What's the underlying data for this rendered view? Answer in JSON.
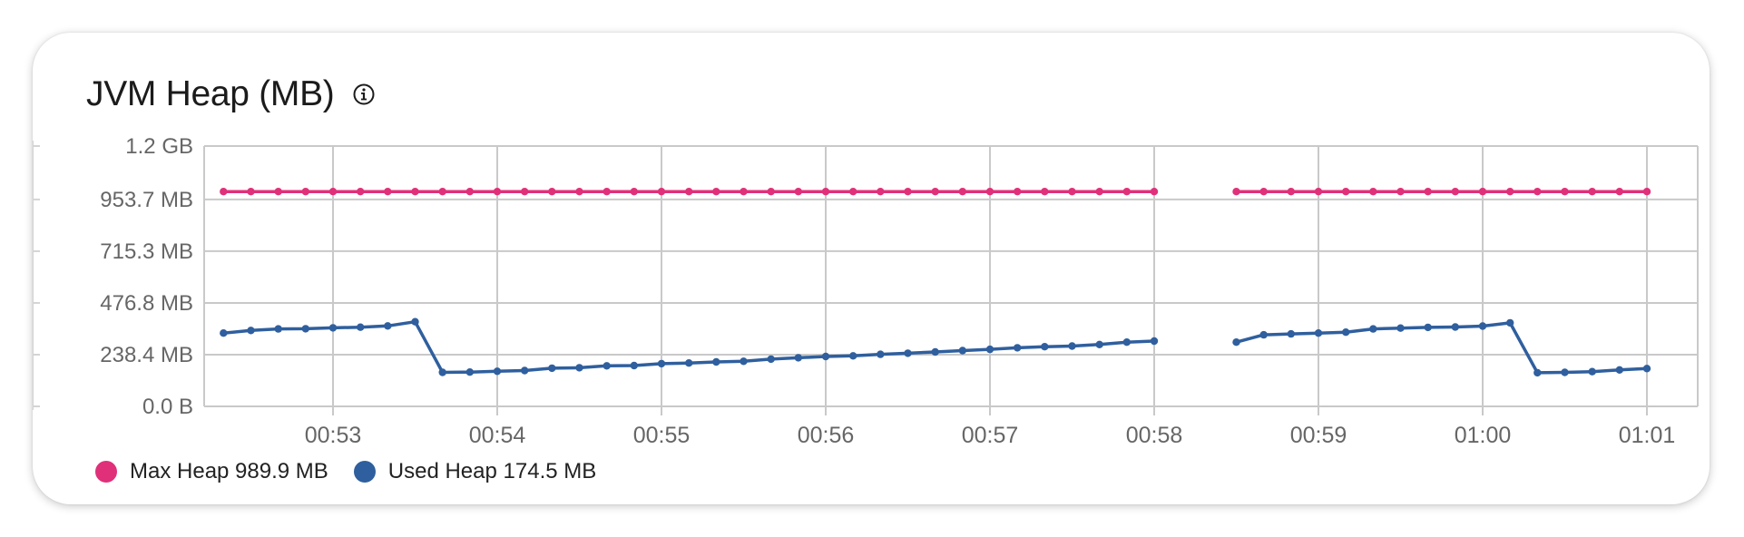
{
  "panel": {
    "title": "JVM Heap (MB)",
    "info_icon": "info-icon"
  },
  "legend": [
    {
      "label": "Max Heap 989.9 MB",
      "color": "#e0307a"
    },
    {
      "label": "Used Heap 174.5 MB",
      "color": "#2f5f9e"
    }
  ],
  "chart_data": {
    "type": "line",
    "title": "JVM Heap (MB)",
    "xlabel": "",
    "ylabel": "",
    "ylim": [
      0,
      1.2
    ],
    "y_ticks": [
      0,
      0.2384,
      0.4768,
      0.7153,
      0.9537,
      1.2
    ],
    "y_tick_labels": [
      "0.0 B",
      "238.4 MB",
      "476.8 MB",
      "715.3 MB",
      "953.7 MB",
      "1.2 GB"
    ],
    "x_ticks": [
      "00:53",
      "00:54",
      "00:55",
      "00:56",
      "00:57",
      "00:58",
      "00:59",
      "01:00",
      "01:01"
    ],
    "x_unit": "minutes after 00:53",
    "grid": true,
    "legend_position": "bottom-left",
    "series": [
      {
        "name": "Max Heap",
        "color": "#e0307a",
        "segments": [
          {
            "x": [
              -0.667,
              -0.5,
              -0.333,
              -0.167,
              0,
              0.167,
              0.333,
              0.5,
              0.667,
              0.833,
              1,
              1.167,
              1.333,
              1.5,
              1.667,
              1.833,
              2,
              2.167,
              2.333,
              2.5,
              2.667,
              2.833,
              3,
              3.167,
              3.333,
              3.5,
              3.667,
              3.833,
              4,
              4.167,
              4.333,
              4.5,
              4.667,
              4.833,
              5
            ],
            "y": [
              0.9899,
              0.9899,
              0.9899,
              0.9899,
              0.9899,
              0.9899,
              0.9899,
              0.9899,
              0.9899,
              0.9899,
              0.9899,
              0.9899,
              0.9899,
              0.9899,
              0.9899,
              0.9899,
              0.9899,
              0.9899,
              0.9899,
              0.9899,
              0.9899,
              0.9899,
              0.9899,
              0.9899,
              0.9899,
              0.9899,
              0.9899,
              0.9899,
              0.9899,
              0.9899,
              0.9899,
              0.9899,
              0.9899,
              0.9899,
              0.9899
            ]
          },
          {
            "x": [
              5.5,
              5.667,
              5.833,
              6,
              6.167,
              6.333,
              6.5,
              6.667,
              6.833,
              7,
              7.167,
              7.333,
              7.5,
              7.667,
              7.833,
              8
            ],
            "y": [
              0.9899,
              0.9899,
              0.9899,
              0.9899,
              0.9899,
              0.9899,
              0.9899,
              0.9899,
              0.9899,
              0.9899,
              0.9899,
              0.9899,
              0.9899,
              0.9899,
              0.9899,
              0.9899
            ]
          }
        ]
      },
      {
        "name": "Used Heap",
        "color": "#2f5f9e",
        "segments": [
          {
            "x": [
              -0.667,
              -0.5,
              -0.333,
              -0.167,
              0,
              0.167,
              0.333,
              0.5,
              0.667,
              0.833,
              1,
              1.167,
              1.333,
              1.5,
              1.667,
              1.833,
              2,
              2.167,
              2.333,
              2.5,
              2.667,
              2.833,
              3,
              3.167,
              3.333,
              3.5,
              3.667,
              3.833,
              4,
              4.167,
              4.333,
              4.5,
              4.667,
              4.833,
              5
            ],
            "y": [
              0.338,
              0.35,
              0.357,
              0.358,
              0.362,
              0.365,
              0.371,
              0.39,
              0.157,
              0.158,
              0.162,
              0.165,
              0.176,
              0.178,
              0.187,
              0.188,
              0.197,
              0.2,
              0.205,
              0.208,
              0.218,
              0.224,
              0.23,
              0.233,
              0.24,
              0.245,
              0.251,
              0.257,
              0.263,
              0.27,
              0.275,
              0.278,
              0.285,
              0.296,
              0.301
            ]
          },
          {
            "x": [
              5.5,
              5.667,
              5.833,
              6,
              6.167,
              6.333,
              6.5,
              6.667,
              6.833,
              7,
              7.167,
              7.333,
              7.5,
              7.667,
              7.833,
              8
            ],
            "y": [
              0.296,
              0.33,
              0.334,
              0.338,
              0.342,
              0.357,
              0.361,
              0.364,
              0.366,
              0.37,
              0.385,
              0.155,
              0.157,
              0.16,
              0.168,
              0.1745
            ]
          }
        ]
      }
    ]
  }
}
